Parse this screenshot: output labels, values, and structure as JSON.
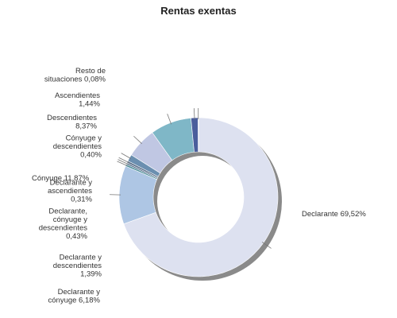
{
  "chart_data": {
    "type": "pie",
    "title": "Rentas exentas",
    "style": "donut",
    "slices": [
      {
        "label": "Declarante",
        "value": 69.52,
        "value_text": "69,52%",
        "color": "#dde1f0",
        "label_lines": [
          "Declarante 69,52%"
        ]
      },
      {
        "label": "Cónyuge",
        "value": 11.87,
        "value_text": "11,87%",
        "color": "#aec6e4",
        "label_lines": [
          "Cónyuge 11,87%"
        ]
      },
      {
        "label": "Cónyuge y descendientes",
        "value": 0.4,
        "value_text": "0,40%",
        "color": "#4f8f9a",
        "label_lines": [
          "Cónyuge y",
          "descendientes",
          "0,40%"
        ]
      },
      {
        "label": "Declarante y ascendientes",
        "value": 0.31,
        "value_text": "0,31%",
        "color": "#3d5a7a",
        "label_lines": [
          "Declarante y",
          "ascendientes",
          "0,31%"
        ]
      },
      {
        "label": "Declarante, cónyuge y descendientes",
        "value": 0.43,
        "value_text": "0,43%",
        "color": "#5b6f8a",
        "label_lines": [
          "Declarante,",
          "cónyuge y",
          "descendientes",
          "0,43%"
        ]
      },
      {
        "label": "Declarante y descendientes",
        "value": 1.39,
        "value_text": "1,39%",
        "color": "#6b8fb0",
        "label_lines": [
          "Declarante y",
          "descendientes",
          "1,39%"
        ]
      },
      {
        "label": "Declarante y cónyuge",
        "value": 6.18,
        "value_text": "6,18%",
        "color": "#c0c7e3",
        "label_lines": [
          "Declarante y",
          "cónyuge 6,18%"
        ]
      },
      {
        "label": "Descendientes",
        "value": 8.37,
        "value_text": "8,37%",
        "color": "#7fb7c7",
        "label_lines": [
          "Descendientes",
          "8,37%"
        ]
      },
      {
        "label": "Ascendientes",
        "value": 1.44,
        "value_text": "1,44%",
        "color": "#4a5e9c",
        "label_lines": [
          "Ascendientes",
          "1,44%"
        ]
      },
      {
        "label": "Resto de situaciones",
        "value": 0.08,
        "value_text": "0,08%",
        "color": "#9aa3b8",
        "label_lines": [
          "Resto de",
          "situaciones 0,08%"
        ]
      }
    ]
  }
}
